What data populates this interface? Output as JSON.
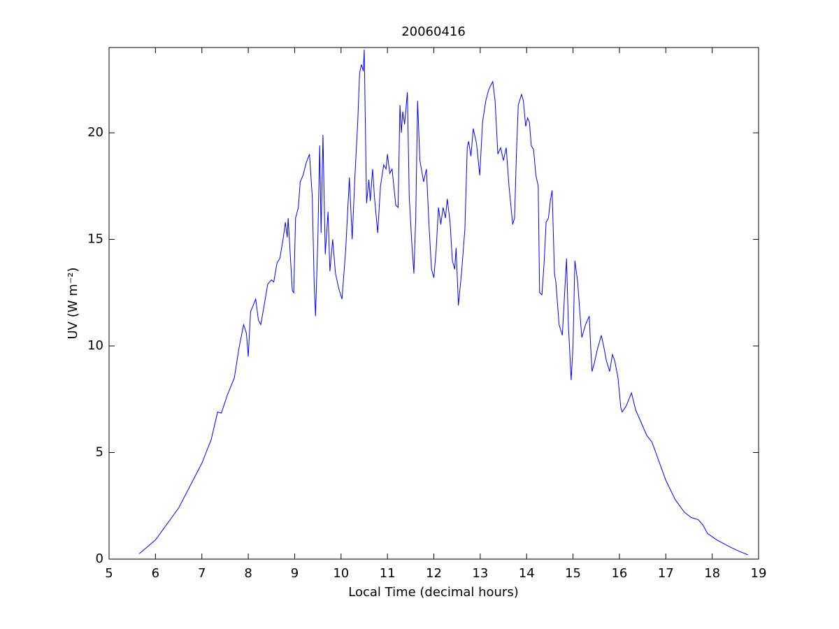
{
  "chart_data": {
    "type": "line",
    "title": "20060416",
    "xlabel": "Local Time (decimal hours)",
    "ylabel": "UV (W m⁻²)",
    "color": "#0000ff",
    "grid": false,
    "xlim": [
      5,
      19
    ],
    "xticks": [
      5,
      6,
      7,
      8,
      9,
      10,
      11,
      12,
      13,
      14,
      15,
      16,
      17,
      18,
      19
    ],
    "ylim": [
      0,
      24
    ],
    "yticks": [
      0,
      5,
      10,
      15,
      20
    ],
    "x": [
      5.65,
      6.0,
      6.5,
      7.0,
      7.2,
      7.34,
      7.42,
      7.55,
      7.7,
      7.8,
      7.9,
      7.96,
      8.0,
      8.05,
      8.16,
      8.22,
      8.27,
      8.35,
      8.42,
      8.5,
      8.55,
      8.62,
      8.68,
      8.75,
      8.8,
      8.84,
      8.86,
      8.95,
      8.98,
      9.02,
      9.08,
      9.12,
      9.18,
      9.25,
      9.32,
      9.38,
      9.42,
      9.45,
      9.5,
      9.54,
      9.57,
      9.61,
      9.66,
      9.72,
      9.76,
      9.82,
      9.88,
      9.95,
      10.02,
      10.1,
      10.18,
      10.24,
      10.3,
      10.36,
      10.4,
      10.44,
      10.48,
      10.5,
      10.55,
      10.6,
      10.63,
      10.68,
      10.72,
      10.79,
      10.85,
      10.92,
      10.97,
      11.0,
      11.05,
      11.1,
      11.18,
      11.23,
      11.27,
      11.3,
      11.33,
      11.37,
      11.43,
      11.47,
      11.52,
      11.57,
      11.61,
      11.65,
      11.7,
      11.78,
      11.84,
      11.9,
      11.95,
      12.0,
      12.05,
      12.1,
      12.15,
      12.2,
      12.25,
      12.29,
      12.35,
      12.4,
      12.45,
      12.48,
      12.53,
      12.6,
      12.67,
      12.72,
      12.75,
      12.8,
      12.85,
      12.92,
      12.99,
      13.05,
      13.12,
      13.18,
      13.22,
      13.27,
      13.32,
      13.38,
      13.44,
      13.5,
      13.56,
      13.62,
      13.7,
      13.74,
      13.78,
      13.82,
      13.89,
      13.93,
      13.98,
      14.02,
      14.06,
      14.1,
      14.15,
      14.2,
      14.25,
      14.28,
      14.33,
      14.38,
      14.42,
      14.47,
      14.51,
      14.55,
      14.6,
      14.63,
      14.7,
      14.77,
      14.82,
      14.86,
      14.9,
      14.96,
      15.0,
      15.04,
      15.1,
      15.15,
      15.19,
      15.27,
      15.35,
      15.38,
      15.41,
      15.46,
      15.52,
      15.61,
      15.66,
      15.72,
      15.79,
      15.85,
      15.9,
      15.97,
      16.03,
      16.06,
      16.15,
      16.26,
      16.35,
      16.45,
      16.59,
      16.7,
      16.85,
      17.0,
      17.2,
      17.4,
      17.55,
      17.7,
      17.8,
      17.9,
      18.1,
      18.4,
      18.6,
      18.77
    ],
    "values": [
      0.25,
      0.9,
      2.4,
      4.5,
      5.6,
      6.9,
      6.85,
      7.7,
      8.5,
      9.9,
      11.0,
      10.6,
      9.5,
      11.6,
      12.2,
      11.2,
      11.0,
      12.0,
      12.9,
      13.1,
      13.0,
      13.9,
      14.1,
      15.0,
      15.8,
      15.1,
      16.0,
      12.6,
      12.5,
      16.0,
      16.5,
      17.7,
      18.0,
      18.6,
      19.0,
      17.0,
      13.0,
      11.4,
      15.0,
      19.4,
      15.3,
      19.9,
      14.3,
      16.3,
      13.5,
      15.0,
      13.4,
      12.7,
      12.2,
      14.5,
      17.9,
      15.0,
      18.0,
      20.5,
      22.8,
      23.2,
      22.9,
      23.9,
      16.7,
      17.8,
      16.8,
      18.3,
      17.0,
      15.3,
      17.5,
      18.5,
      18.3,
      19.0,
      18.1,
      18.3,
      16.6,
      16.5,
      21.3,
      20.0,
      21.0,
      20.4,
      21.9,
      17.0,
      15.0,
      13.4,
      16.0,
      21.5,
      18.7,
      17.7,
      18.3,
      15.5,
      13.6,
      13.2,
      14.5,
      16.5,
      15.7,
      16.5,
      16.0,
      16.9,
      15.8,
      14.0,
      13.6,
      14.6,
      11.9,
      13.5,
      15.5,
      19.3,
      19.6,
      18.9,
      20.2,
      19.5,
      18.0,
      20.5,
      21.5,
      22.0,
      22.2,
      22.4,
      21.5,
      19.0,
      19.3,
      18.7,
      19.3,
      17.5,
      15.7,
      16.0,
      19.0,
      21.3,
      21.8,
      21.5,
      20.3,
      20.7,
      20.5,
      19.4,
      19.2,
      18.0,
      17.5,
      12.5,
      12.4,
      14.0,
      15.8,
      16.0,
      16.8,
      17.3,
      13.4,
      13.0,
      11.0,
      10.5,
      12.5,
      14.1,
      11.0,
      8.4,
      10.0,
      14.0,
      13.0,
      11.5,
      10.4,
      11.0,
      11.4,
      10.0,
      8.8,
      9.2,
      9.8,
      10.5,
      10.0,
      9.3,
      8.8,
      9.6,
      9.3,
      8.5,
      7.1,
      6.9,
      7.2,
      7.8,
      7.0,
      6.5,
      5.8,
      5.5,
      4.6,
      3.7,
      2.8,
      2.2,
      1.95,
      1.85,
      1.6,
      1.2,
      0.9,
      0.55,
      0.35,
      0.2
    ]
  }
}
